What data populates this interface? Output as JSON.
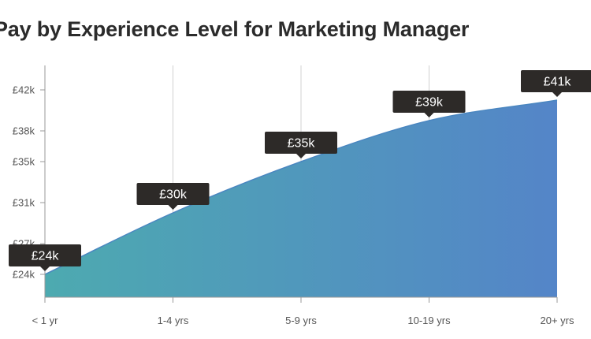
{
  "chart_data": {
    "type": "area",
    "title": "Pay by Experience Level for Marketing Manager",
    "xlabel": "",
    "ylabel": "",
    "categories": [
      "< 1 yr",
      "1-4 yrs",
      "5-9 yrs",
      "10-19 yrs",
      "20+ yrs"
    ],
    "values": [
      24,
      30,
      35,
      39,
      41
    ],
    "data_labels": [
      "£24k",
      "£30k",
      "£35k",
      "£39k",
      "£41k"
    ],
    "y_ticks": [
      24,
      27,
      31,
      35,
      38,
      42
    ],
    "y_tick_labels": [
      "£24k",
      "£27k",
      "£31k",
      "£35k",
      "£38k",
      "£42k"
    ],
    "ylim": [
      22,
      42
    ],
    "grid": "vertical",
    "colors": {
      "fill_start": "#4daab0",
      "fill_end": "#5485c8",
      "line": "#4a86c0",
      "label_bg": "#2d2a28",
      "axis": "#999999",
      "gridline": "#d0d0d0"
    }
  }
}
